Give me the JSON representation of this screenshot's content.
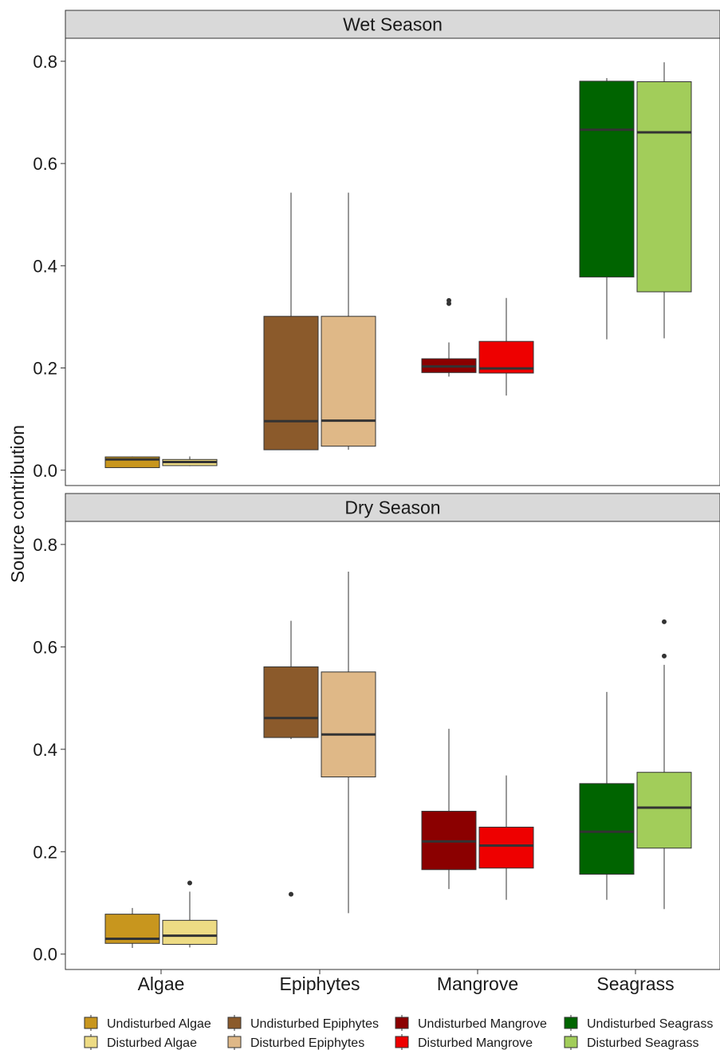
{
  "chart_data": {
    "type": "boxplot",
    "ylabel": "Source contribution",
    "ylim": [
      -0.03,
      0.845
    ],
    "y_ticks": [
      "0.0",
      "0.2",
      "0.4",
      "0.6",
      "0.8"
    ],
    "categories": [
      "Algae",
      "Epiphytes",
      "Mangrove",
      "Seagrass"
    ],
    "series": [
      {
        "name": "Undisturbed Algae",
        "color": "#C8961E"
      },
      {
        "name": "Disturbed Algae",
        "color": "#EDDB84"
      },
      {
        "name": "Undisturbed Epiphytes",
        "color": "#8B5A2B"
      },
      {
        "name": "Disturbed Epiphytes",
        "color": "#DFB887"
      },
      {
        "name": "Undisturbed Mangrove",
        "color": "#8B0000"
      },
      {
        "name": "Disturbed Mangrove",
        "color": "#EE0000"
      },
      {
        "name": "Undisturbed Seagrass",
        "color": "#006400"
      },
      {
        "name": "Disturbed Seagrass",
        "color": "#A2CD5A"
      }
    ],
    "panels": [
      {
        "title": "Wet Season",
        "boxes": [
          {
            "series": 0,
            "category": 0,
            "whisker_low": 0.005,
            "q1": 0.005,
            "median": 0.021,
            "q3": 0.026,
            "whisker_high": 0.027,
            "outliers": []
          },
          {
            "series": 1,
            "category": 0,
            "whisker_low": 0.008,
            "q1": 0.009,
            "median": 0.016,
            "q3": 0.021,
            "whisker_high": 0.027,
            "outliers": []
          },
          {
            "series": 2,
            "category": 1,
            "whisker_low": 0.04,
            "q1": 0.04,
            "median": 0.096,
            "q3": 0.301,
            "whisker_high": 0.543,
            "outliers": []
          },
          {
            "series": 3,
            "category": 1,
            "whisker_low": 0.04,
            "q1": 0.047,
            "median": 0.097,
            "q3": 0.301,
            "whisker_high": 0.543,
            "outliers": []
          },
          {
            "series": 4,
            "category": 2,
            "whisker_low": 0.183,
            "q1": 0.191,
            "median": 0.203,
            "q3": 0.218,
            "whisker_high": 0.25,
            "outliers": [
              0.326,
              0.332
            ]
          },
          {
            "series": 5,
            "category": 2,
            "whisker_low": 0.146,
            "q1": 0.19,
            "median": 0.199,
            "q3": 0.252,
            "whisker_high": 0.337,
            "outliers": []
          },
          {
            "series": 6,
            "category": 3,
            "whisker_low": 0.256,
            "q1": 0.378,
            "median": 0.666,
            "q3": 0.761,
            "whisker_high": 0.767,
            "outliers": []
          },
          {
            "series": 7,
            "category": 3,
            "whisker_low": 0.258,
            "q1": 0.349,
            "median": 0.661,
            "q3": 0.76,
            "whisker_high": 0.798,
            "outliers": []
          }
        ]
      },
      {
        "title": "Dry Season",
        "boxes": [
          {
            "series": 0,
            "category": 0,
            "whisker_low": 0.012,
            "q1": 0.021,
            "median": 0.03,
            "q3": 0.078,
            "whisker_high": 0.09,
            "outliers": []
          },
          {
            "series": 1,
            "category": 0,
            "whisker_low": 0.013,
            "q1": 0.019,
            "median": 0.036,
            "q3": 0.066,
            "whisker_high": 0.122,
            "outliers": [
              0.139
            ]
          },
          {
            "series": 2,
            "category": 1,
            "whisker_low": 0.42,
            "q1": 0.423,
            "median": 0.461,
            "q3": 0.561,
            "whisker_high": 0.651,
            "outliers": [
              0.117
            ]
          },
          {
            "series": 3,
            "category": 1,
            "whisker_low": 0.08,
            "q1": 0.346,
            "median": 0.429,
            "q3": 0.551,
            "whisker_high": 0.747,
            "outliers": []
          },
          {
            "series": 4,
            "category": 2,
            "whisker_low": 0.127,
            "q1": 0.165,
            "median": 0.22,
            "q3": 0.279,
            "whisker_high": 0.44,
            "outliers": []
          },
          {
            "series": 5,
            "category": 2,
            "whisker_low": 0.106,
            "q1": 0.168,
            "median": 0.212,
            "q3": 0.248,
            "whisker_high": 0.349,
            "outliers": []
          },
          {
            "series": 6,
            "category": 3,
            "whisker_low": 0.106,
            "q1": 0.156,
            "median": 0.239,
            "q3": 0.333,
            "whisker_high": 0.512,
            "outliers": []
          },
          {
            "series": 7,
            "category": 3,
            "whisker_low": 0.088,
            "q1": 0.207,
            "median": 0.286,
            "q3": 0.355,
            "whisker_high": 0.565,
            "outliers": [
              0.582,
              0.649
            ]
          }
        ]
      }
    ],
    "legend": {
      "position": "bottom",
      "rows": [
        [
          "Undisturbed Algae",
          "Undisturbed Epiphytes",
          "Undisturbed Mangrove",
          "Undisturbed Seagrass"
        ],
        [
          "Disturbed Algae",
          "Disturbed Epiphytes",
          "Disturbed Mangrove",
          "Disturbed Seagrass"
        ]
      ]
    },
    "grid": false
  }
}
